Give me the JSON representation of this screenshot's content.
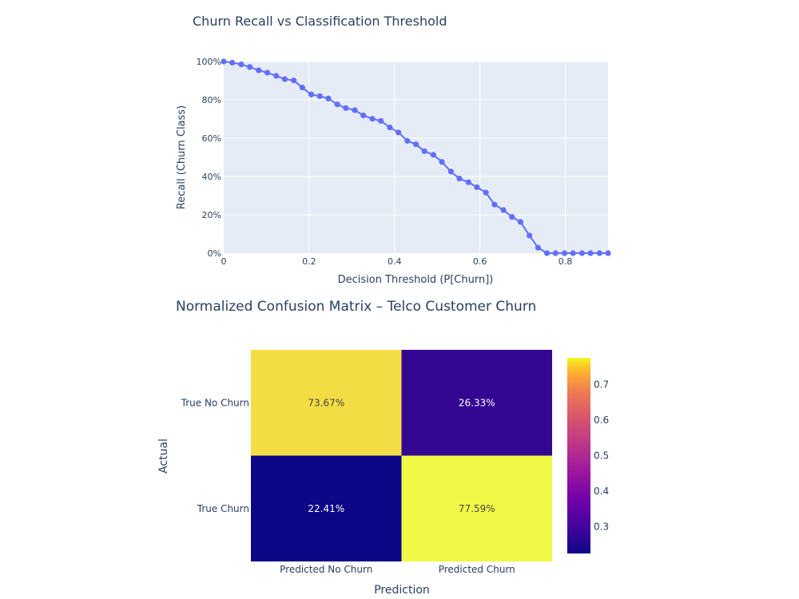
{
  "chart_data": [
    {
      "type": "line",
      "title": "Churn Recall vs Classification Threshold",
      "xlabel": "Decision Threshold (P[Churn])",
      "ylabel": "Recall (Churn Class)",
      "xlim": [
        0,
        0.9
      ],
      "ylim": [
        0,
        100
      ],
      "x_ticks": [
        "0",
        "0.2",
        "0.4",
        "0.6",
        "0.8"
      ],
      "y_ticks": [
        "0%",
        "20%",
        "40%",
        "60%",
        "80%",
        "100%"
      ],
      "grid": true,
      "line_color": "#636efa",
      "plot_bg": "#e5ecf6",
      "x": [
        0,
        0.02,
        0.041,
        0.061,
        0.082,
        0.102,
        0.123,
        0.143,
        0.164,
        0.184,
        0.205,
        0.225,
        0.245,
        0.266,
        0.286,
        0.307,
        0.327,
        0.348,
        0.368,
        0.389,
        0.409,
        0.43,
        0.45,
        0.47,
        0.491,
        0.511,
        0.532,
        0.552,
        0.573,
        0.593,
        0.614,
        0.634,
        0.655,
        0.675,
        0.695,
        0.716,
        0.736,
        0.757,
        0.777,
        0.798,
        0.818,
        0.839,
        0.859,
        0.88,
        0.9
      ],
      "y": [
        100,
        99.4,
        98.5,
        97.1,
        95.4,
        94.2,
        92.5,
        90.8,
        90.1,
        86.4,
        82.8,
        81.9,
        80.7,
        77.6,
        75.7,
        74.6,
        71.9,
        70.1,
        69,
        65.6,
        63,
        58.6,
        56.8,
        53.2,
        51.3,
        47.6,
        42.6,
        38.9,
        37,
        34.4,
        31.6,
        25.4,
        22.5,
        18.9,
        16.3,
        9.2,
        2.9,
        0,
        0,
        0,
        0,
        0,
        0,
        0,
        0
      ]
    },
    {
      "type": "heatmap",
      "title": "Normalized Confusion Matrix – Telco Customer Churn",
      "xlabel": "Prediction",
      "ylabel": "Actual",
      "x_categories": [
        "Predicted No Churn",
        "Predicted Churn"
      ],
      "y_categories": [
        "True No Churn",
        "True Churn"
      ],
      "values": [
        [
          0.7367,
          0.2633
        ],
        [
          0.2241,
          0.7759
        ]
      ],
      "labels": [
        [
          "73.67%",
          "26.33%"
        ],
        [
          "22.41%",
          "77.59%"
        ]
      ],
      "cell_colors": [
        [
          "#f4dc44",
          "#330792"
        ],
        [
          "#0c0786",
          "#f0f945"
        ]
      ],
      "colorscale": "Plasma",
      "colorbar_ticks": [
        "0.3",
        "0.4",
        "0.5",
        "0.6",
        "0.7"
      ]
    }
  ]
}
